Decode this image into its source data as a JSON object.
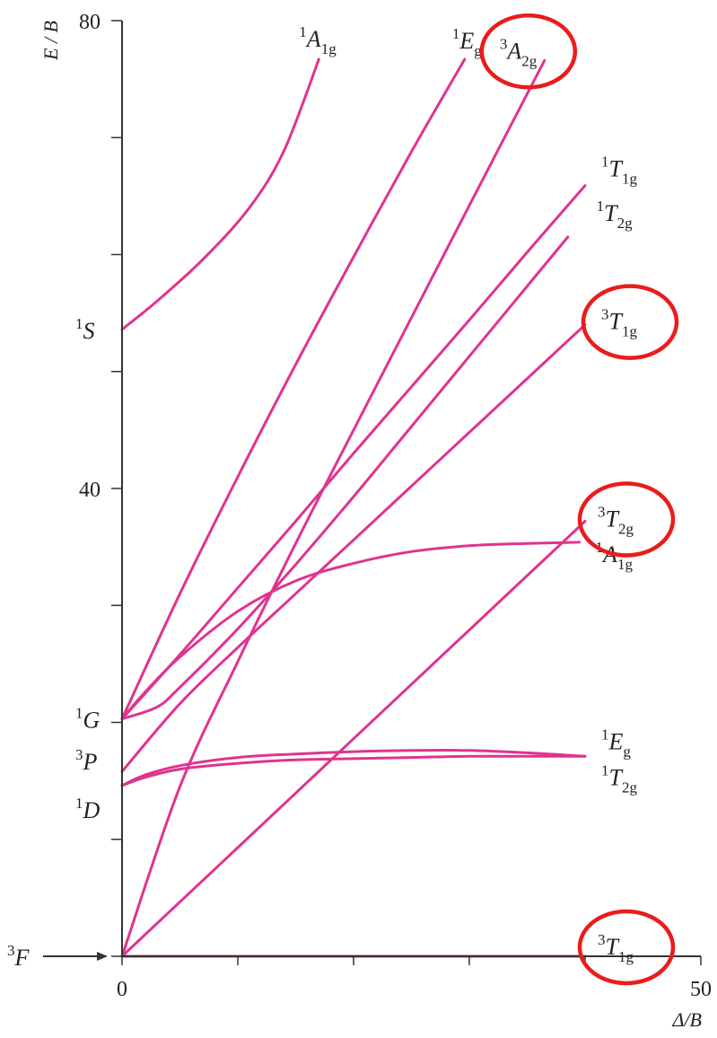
{
  "chart_data": {
    "type": "line",
    "title": "",
    "xlabel": "Δ/B",
    "ylabel": "E / B",
    "xlim": [
      0,
      50
    ],
    "ylim": [
      0,
      80
    ],
    "x_ticks": [
      0,
      10,
      20,
      30,
      40,
      50
    ],
    "x_tick_labels": [
      "0",
      "",
      "",
      "",
      "",
      "50"
    ],
    "y_ticks": [
      0,
      10,
      20,
      30,
      40,
      50,
      60,
      70,
      80
    ],
    "y_tick_labels": [
      "",
      "",
      "",
      "",
      "40",
      "",
      "",
      "",
      "80"
    ],
    "grid": false,
    "legend": "none",
    "line_color": "#e0338f",
    "highlight_color": "#ea1c1c",
    "free_ion_terms": [
      {
        "mult": "3",
        "sym": "F",
        "energy": 0,
        "arrow": true
      },
      {
        "mult": "1",
        "sym": "D",
        "energy": 14.6
      },
      {
        "mult": "3",
        "sym": "P",
        "energy": 15.8
      },
      {
        "mult": "1",
        "sym": "G",
        "energy": 20.3
      },
      {
        "mult": "1",
        "sym": "S",
        "energy": 53.6
      }
    ],
    "series": [
      {
        "mult": "3",
        "sym": "T",
        "sub": "1g",
        "x": [
          0,
          10,
          20,
          30,
          40
        ],
        "y": [
          0,
          0,
          0,
          0,
          0
        ],
        "highlighted": true
      },
      {
        "mult": "3",
        "sym": "T",
        "sub": "2g",
        "x": [
          0,
          10,
          20,
          30,
          40
        ],
        "y": [
          0,
          9.3,
          18.6,
          27.9,
          37.2
        ],
        "highlighted": true
      },
      {
        "mult": "3",
        "sym": "T",
        "sub": "1g",
        "x": [
          0,
          5,
          10,
          15,
          20,
          25,
          30,
          35,
          40
        ],
        "y": [
          15.8,
          21.6,
          26.4,
          31.0,
          35.6,
          40.2,
          44.8,
          49.4,
          54.0
        ],
        "highlighted": true
      },
      {
        "mult": "3",
        "sym": "A",
        "sub": "2g",
        "x": [
          0,
          5,
          10,
          15,
          20,
          25,
          30,
          36.5
        ],
        "y": [
          0,
          14.5,
          25.2,
          35.3,
          45.0,
          54.6,
          64.2,
          76.6
        ],
        "highlighted": true
      },
      {
        "mult": "1",
        "sym": "E",
        "sub": "g",
        "x": [
          0,
          5,
          10,
          15,
          20,
          25,
          29.6
        ],
        "y": [
          20.3,
          31.0,
          41.0,
          50.6,
          59.8,
          68.8,
          76.7
        ]
      },
      {
        "mult": "1",
        "sym": "A",
        "sub": "1g",
        "x": [
          0,
          3,
          7,
          11,
          14,
          17
        ],
        "y": [
          53.6,
          56.0,
          59.6,
          64.0,
          68.9,
          76.7
        ]
      },
      {
        "mult": "1",
        "sym": "T",
        "sub": "1g",
        "x": [
          0,
          5,
          10,
          15,
          20,
          25,
          30,
          35,
          40
        ],
        "y": [
          20.3,
          25.8,
          31.5,
          37.2,
          43.0,
          48.7,
          54.4,
          60.2,
          65.9
        ]
      },
      {
        "mult": "1",
        "sym": "T",
        "sub": "2g",
        "x": [
          0,
          3,
          5,
          10,
          15,
          20,
          25,
          30,
          35,
          38.5
        ],
        "y": [
          20.3,
          21.3,
          23.0,
          28.0,
          33.5,
          39.3,
          45.3,
          51.3,
          57.3,
          61.5
        ]
      },
      {
        "mult": "1",
        "sym": "A",
        "sub": "1g",
        "x": [
          0,
          2,
          5,
          10,
          15,
          20,
          25,
          30,
          35,
          39.5
        ],
        "y": [
          20.3,
          22.6,
          25.6,
          29.5,
          32.1,
          33.6,
          34.6,
          35.1,
          35.3,
          35.4
        ]
      },
      {
        "mult": "1",
        "sym": "E",
        "sub": "g",
        "x": [
          0,
          2,
          5,
          10,
          15,
          20,
          25,
          30,
          35,
          40
        ],
        "y": [
          14.6,
          15.5,
          16.3,
          17.0,
          17.3,
          17.5,
          17.6,
          17.6,
          17.4,
          17.1
        ]
      },
      {
        "mult": "1",
        "sym": "T",
        "sub": "2g",
        "x": [
          0,
          2,
          5,
          10,
          15,
          20,
          25,
          30,
          35,
          40
        ],
        "y": [
          14.6,
          15.3,
          16.0,
          16.5,
          16.8,
          16.9,
          17.0,
          17.1,
          17.1,
          17.1
        ]
      }
    ]
  }
}
